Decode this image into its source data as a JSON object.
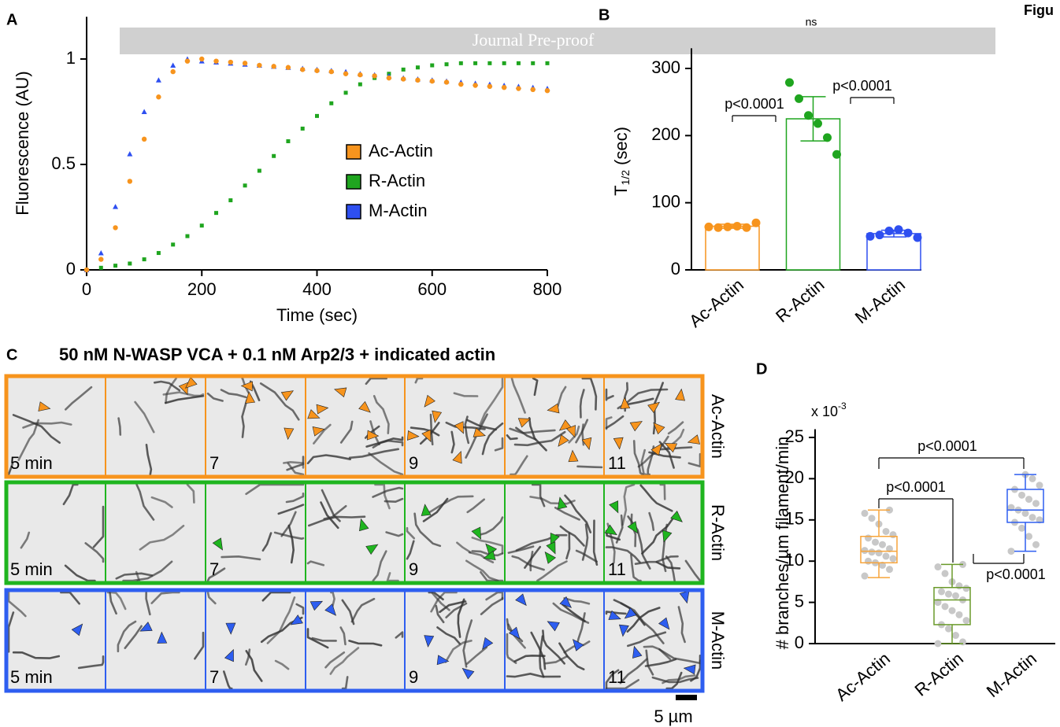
{
  "figure_label": "Figu",
  "watermark": "Journal Pre-proof",
  "panel_labels": [
    "A",
    "B",
    "C",
    "D"
  ],
  "chart_data": [
    {
      "type": "line",
      "xlabel": "Time (sec)",
      "ylabel": "Fluorescence (AU)",
      "x": [
        0,
        25,
        50,
        75,
        100,
        125,
        150,
        175,
        200,
        225,
        250,
        275,
        300,
        325,
        350,
        375,
        400,
        425,
        450,
        475,
        500,
        525,
        550,
        575,
        600,
        625,
        650,
        675,
        700,
        725,
        750,
        775,
        800
      ],
      "series": [
        {
          "name": "Ac-Actin",
          "color": "#f7941d",
          "marker": "circle",
          "values": [
            0,
            0.05,
            0.2,
            0.42,
            0.62,
            0.82,
            0.94,
            0.99,
            1.0,
            0.99,
            0.985,
            0.98,
            0.97,
            0.965,
            0.96,
            0.95,
            0.945,
            0.94,
            0.93,
            0.925,
            0.92,
            0.91,
            0.905,
            0.9,
            0.895,
            0.89,
            0.88,
            0.875,
            0.87,
            0.865,
            0.86,
            0.855,
            0.85
          ]
        },
        {
          "name": "R-Actin",
          "color": "#1fa51f",
          "marker": "square",
          "values": [
            0,
            0.01,
            0.02,
            0.03,
            0.05,
            0.08,
            0.12,
            0.16,
            0.21,
            0.27,
            0.33,
            0.4,
            0.47,
            0.54,
            0.61,
            0.67,
            0.73,
            0.79,
            0.84,
            0.88,
            0.91,
            0.93,
            0.95,
            0.96,
            0.97,
            0.975,
            0.98,
            0.98,
            0.98,
            0.98,
            0.98,
            0.98,
            0.98
          ]
        },
        {
          "name": "M-Actin",
          "color": "#2e4ff0",
          "marker": "triangle",
          "values": [
            0,
            0.08,
            0.3,
            0.55,
            0.75,
            0.9,
            0.97,
            1.0,
            0.99,
            0.985,
            0.98,
            0.975,
            0.97,
            0.965,
            0.96,
            0.955,
            0.95,
            0.945,
            0.94,
            0.93,
            0.925,
            0.92,
            0.91,
            0.905,
            0.9,
            0.895,
            0.89,
            0.885,
            0.88,
            0.875,
            0.87,
            0.865,
            0.86
          ]
        }
      ],
      "xlim": [
        0,
        800
      ],
      "ylim": [
        0,
        1.2
      ],
      "xticks": [
        0,
        200,
        400,
        600,
        800
      ],
      "yticks": [
        0,
        0.5,
        1
      ]
    },
    {
      "type": "bar",
      "ylabel": "T",
      "ylabel_subscript": "1/2",
      "ylabel_suffix": "(sec)",
      "categories": [
        "Ac-Actin",
        "R-Actin",
        "M-Actin"
      ],
      "colors": [
        "#f7941d",
        "#1fa51f",
        "#2e4ff0"
      ],
      "values": [
        65,
        225,
        54
      ],
      "errors": [
        3,
        33,
        5
      ],
      "points": [
        [
          64,
          63,
          64,
          65,
          63,
          70
        ],
        [
          279,
          255,
          230,
          218,
          197,
          172
        ],
        [
          50,
          52,
          58,
          60,
          55,
          48
        ]
      ],
      "ylim": [
        0,
        330
      ],
      "yticks": [
        0,
        100,
        200,
        300
      ],
      "annotations": [
        "ns",
        "p<0.0001",
        "p<0.0001"
      ]
    },
    {
      "type": "box",
      "ylabel": "# branches/µm filament/min",
      "scale_label": "x 10",
      "scale_exponent": "-3",
      "categories": [
        "Ac-Actin",
        "R-Actin",
        "M-Actin"
      ],
      "colors": [
        "#f7a43a",
        "#6a9a2a",
        "#2e5ef0"
      ],
      "boxes": [
        {
          "min": 8,
          "q1": 9.8,
          "median": 11.2,
          "q3": 13,
          "max": 16.2
        },
        {
          "min": 0,
          "q1": 2.3,
          "median": 5.3,
          "q3": 6.8,
          "max": 9.6
        },
        {
          "min": 11.2,
          "q1": 14.7,
          "median": 16.2,
          "q3": 18.7,
          "max": 20.5
        }
      ],
      "points": [
        [
          8.2,
          9,
          9.5,
          9.8,
          10,
          10.3,
          10.6,
          11,
          11.1,
          11.3,
          11.5,
          12,
          12.3,
          12.8,
          13.2,
          13.6,
          14.5,
          15.2,
          15.8,
          16.2
        ],
        [
          0,
          0.2,
          1,
          1.8,
          2.3,
          2.8,
          3.5,
          4,
          4.5,
          5,
          5.3,
          5.8,
          6,
          6.3,
          6.7,
          7,
          7.5,
          8.5,
          9.3,
          9.6
        ],
        [
          11.2,
          12,
          13,
          14,
          14.7,
          15,
          15.3,
          15.8,
          16.2,
          16.5,
          17,
          17.5,
          18,
          18.7,
          19.2,
          20,
          20.5
        ]
      ],
      "ylim": [
        0,
        26
      ],
      "yticks": [
        0,
        5,
        10,
        15,
        20,
        25
      ],
      "annotations": [
        "p<0.0001",
        "p<0.0001",
        "p<0.0001"
      ]
    }
  ],
  "panel_c": {
    "title": "50 nM N-WASP VCA + 0.1 nM Arp2/3 + indicated actin",
    "rows": [
      "Ac-Actin",
      "R-Actin",
      "M-Actin"
    ],
    "colors": [
      "#f7941d",
      "#1fb51f",
      "#2e5ef0"
    ],
    "time_labels": [
      "5 min",
      "7",
      "9",
      "11"
    ],
    "scale_bar": "5 µm"
  }
}
